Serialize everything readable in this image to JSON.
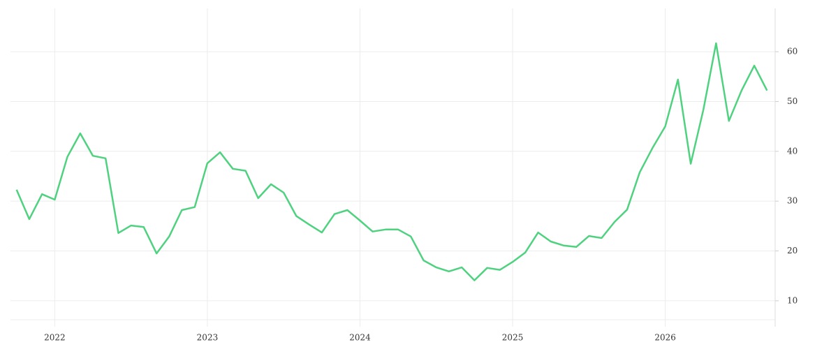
{
  "chart_data": {
    "type": "line",
    "x": [
      2021.75,
      2021.833,
      2021.917,
      2022,
      2022.083,
      2022.167,
      2022.25,
      2022.333,
      2022.417,
      2022.5,
      2022.583,
      2022.667,
      2022.75,
      2022.833,
      2022.917,
      2023,
      2023.083,
      2023.167,
      2023.25,
      2023.333,
      2023.417,
      2023.5,
      2023.583,
      2023.667,
      2023.75,
      2023.833,
      2023.917,
      2024,
      2024.083,
      2024.167,
      2024.25,
      2024.333,
      2024.417,
      2024.5,
      2024.583,
      2024.667,
      2024.75,
      2024.833,
      2024.917,
      2025,
      2025.083,
      2025.167,
      2025.25,
      2025.333,
      2025.417,
      2025.5,
      2025.583,
      2025.667,
      2025.75,
      2025.833,
      2025.917,
      2026,
      2026.083,
      2026.167,
      2026.25,
      2026.333,
      2026.417,
      2026.5,
      2026.583,
      2026.667
    ],
    "series": [
      {
        "color": "#4fd27f",
        "values": [
          32.3,
          26.4,
          31.4,
          30.3,
          38.9,
          43.6,
          39.1,
          38.6,
          23.6,
          25.1,
          24.8,
          19.5,
          22.9,
          28.2,
          28.8,
          37.6,
          39.8,
          36.5,
          36.1,
          30.6,
          33.4,
          31.7,
          27.0,
          25.3,
          23.7,
          27.4,
          28.2,
          26.1,
          23.9,
          24.3,
          24.3,
          22.9,
          18.1,
          16.7,
          15.9,
          16.7,
          14.1,
          16.6,
          16.2,
          17.8,
          19.7,
          23.7,
          21.9,
          21.1,
          20.8,
          23.0,
          22.6,
          25.8,
          28.3,
          35.8,
          40.7,
          45.0,
          54.4,
          37.5,
          48.4,
          61.7,
          46.1,
          52.2,
          57.2,
          52.2
        ]
      }
    ],
    "xlim": [
      2021.71,
      2026.72
    ],
    "xticks": [
      2022,
      2023,
      2024,
      2025,
      2026
    ],
    "ylim": [
      4.8,
      68.7
    ],
    "yticks": [
      10,
      20,
      30,
      40,
      50,
      60
    ],
    "grid": true
  }
}
